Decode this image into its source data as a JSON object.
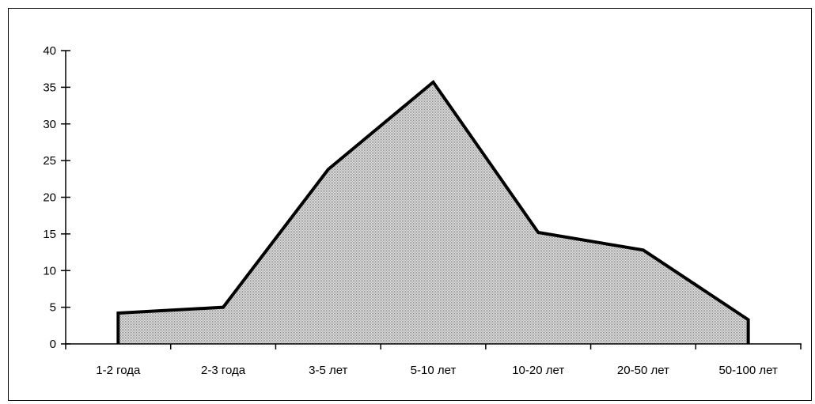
{
  "chart_data": {
    "type": "area",
    "title": "",
    "xlabel": "",
    "ylabel": "",
    "categories": [
      "1-2 года",
      "2-3 года",
      "3-5 лет",
      "5-10 лет",
      "10-20 лет",
      "20-50 лет",
      "50-100 лет"
    ],
    "values": [
      4.2,
      5.0,
      23.8,
      35.7,
      15.2,
      12.8,
      3.3
    ],
    "y_ticks": [
      "0",
      "5",
      "10",
      "15",
      "20",
      "25",
      "30",
      "35",
      "40"
    ],
    "ylim": [
      0,
      40
    ],
    "grid": false,
    "legend": "none",
    "fill_pattern": "fine-dot-gray",
    "line_color": "#000000"
  }
}
